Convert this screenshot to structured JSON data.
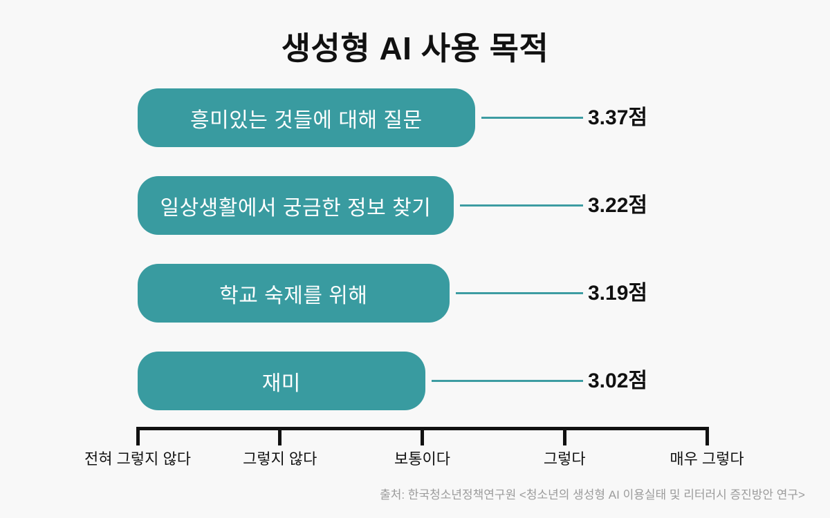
{
  "title": "생성형 AI 사용 목적",
  "source": "출처: 한국청소년정책연구원 <청소년의 생성형 AI 이용실태 및 리터러시 증진방안 연구>",
  "colors": {
    "background": "#f8f8f8",
    "bar": "#399ba0",
    "connector": "#3d9ca2",
    "bar_label": "#ffffff",
    "ink": "#111111",
    "source_text": "#9b9b9b"
  },
  "chart_data": {
    "type": "bar",
    "orientation": "horizontal",
    "title": "생성형 AI 사용 목적",
    "categories": [
      "흥미있는 것들에 대해 질문",
      "일상생활에서 궁금한 정보 찾기",
      "학교 숙제를 위해",
      "재미"
    ],
    "values": [
      3.37,
      3.22,
      3.19,
      3.02
    ],
    "value_labels": [
      "3.37점",
      "3.22점",
      "3.19점",
      "3.02점"
    ],
    "unit": "점",
    "x_axis": {
      "min": 1,
      "max": 5,
      "tick_values": [
        1,
        2,
        3,
        4,
        5
      ],
      "tick_labels": [
        "전혀 그렇지 않다",
        "그렇지 않다",
        "보통이다",
        "그렇다",
        "매우 그렇다"
      ]
    },
    "grid": false,
    "legend": false
  }
}
